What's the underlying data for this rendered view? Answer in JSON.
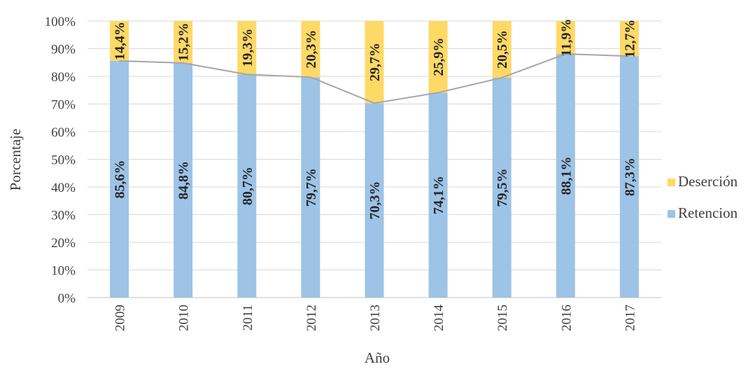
{
  "chart_data": {
    "type": "bar",
    "stacked": true,
    "categories": [
      "2009",
      "2010",
      "2011",
      "2012",
      "2013",
      "2014",
      "2015",
      "2016",
      "2017"
    ],
    "series": [
      {
        "name": "Retencion",
        "color": "#9dc3e6",
        "values": [
          85.6,
          84.8,
          80.7,
          79.7,
          70.3,
          74.1,
          79.5,
          88.1,
          87.3
        ],
        "labels": [
          "85,6%",
          "84,8%",
          "80,7%",
          "79,7%",
          "70,3%",
          "74,1%",
          "79,5%",
          "88,1%",
          "87,3%"
        ]
      },
      {
        "name": "Deserción",
        "color": "#ffd966",
        "values": [
          14.4,
          15.2,
          19.3,
          20.3,
          29.7,
          25.9,
          20.5,
          11.9,
          12.7
        ],
        "labels": [
          "14,4%",
          "15,2%",
          "19,3%",
          "20,3%",
          "29,7%",
          "25,9%",
          "20,5%",
          "11,9%",
          "12,7%"
        ]
      }
    ],
    "line": {
      "of_series": "Retencion",
      "color": "#a6a6a6",
      "values": [
        85.6,
        84.8,
        80.7,
        79.7,
        70.3,
        74.1,
        79.5,
        88.1,
        87.3
      ]
    },
    "xlabel": "Año",
    "ylabel": "Porcentaje",
    "ylim": [
      0,
      100
    ],
    "yticks": [
      "0%",
      "10%",
      "20%",
      "30%",
      "40%",
      "50%",
      "60%",
      "70%",
      "80%",
      "90%",
      "100%"
    ],
    "grid": true,
    "legend_position": "right",
    "legend_order": [
      "Deserción",
      "Retencion"
    ]
  }
}
